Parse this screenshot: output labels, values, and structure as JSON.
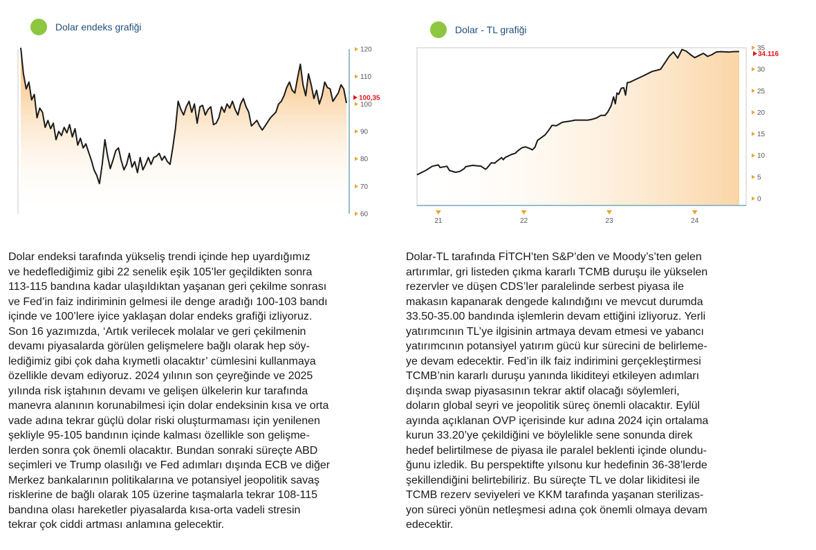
{
  "charts": [
    {
      "title": "Dolar endeks grafiği"
    },
    {
      "title": "Dolar - TL grafiği"
    }
  ],
  "chart_data": [
    {
      "type": "area",
      "title": "Dolar endeks grafiği",
      "ylim": [
        60,
        120
      ],
      "yticks": [
        120,
        110,
        100,
        90,
        80,
        70,
        60
      ],
      "current_value_label": "100,35",
      "current_value": 100.35,
      "x": [
        0,
        1,
        2,
        3,
        4,
        5,
        6,
        7,
        8,
        9,
        10,
        11,
        12,
        13,
        14,
        15,
        16,
        17,
        18,
        19,
        20,
        21,
        22,
        23,
        24,
        25,
        26,
        27,
        28,
        29,
        30,
        31,
        32,
        33,
        34,
        35,
        36,
        37,
        38,
        39,
        40,
        41,
        42,
        43,
        44,
        45,
        46,
        47,
        48,
        49,
        50,
        51,
        52,
        53,
        54,
        55,
        56,
        57,
        58,
        59,
        60,
        61,
        62,
        63,
        64,
        65,
        66,
        67,
        68,
        69,
        70,
        71,
        72,
        73,
        74,
        75,
        76,
        77,
        78,
        79,
        80,
        81,
        82,
        83,
        84,
        85,
        86,
        87,
        88,
        89,
        90,
        91,
        92,
        93,
        94,
        95,
        96,
        97,
        98,
        99,
        100,
        101,
        102,
        103,
        104,
        105,
        106,
        107,
        108,
        109,
        110,
        111,
        112,
        113,
        114,
        115,
        116,
        117,
        118,
        119,
        120
      ],
      "values": [
        120.5,
        111,
        105.5,
        108,
        101.5,
        103.5,
        95,
        98.5,
        97,
        91.5,
        94,
        91,
        93,
        87,
        90,
        88.5,
        91.5,
        89.5,
        92.5,
        88,
        91,
        85,
        87.5,
        84,
        85.5,
        82.5,
        79.5,
        76,
        74,
        71,
        78,
        87,
        81,
        76.5,
        79.5,
        83,
        84,
        79.5,
        76,
        78,
        82,
        77,
        79,
        75,
        80.5,
        76,
        78,
        80.5,
        78,
        80.5,
        81,
        82,
        79.5,
        81,
        79,
        78,
        84,
        91,
        101,
        98,
        96,
        99,
        101,
        97,
        100,
        93,
        99,
        99.5,
        96,
        98,
        99,
        92.5,
        93,
        95,
        99,
        97,
        100,
        98.5,
        101,
        98,
        96,
        100,
        102,
        99,
        97,
        92,
        93,
        94,
        92,
        90.5,
        92,
        93.5,
        95,
        96,
        97,
        100,
        101,
        103,
        106,
        108,
        105,
        104,
        109.5,
        114.5,
        107,
        103,
        111,
        107,
        102,
        105,
        100,
        103,
        108,
        106,
        105.5,
        101,
        102.5,
        104,
        107,
        105.5,
        100.35
      ]
    },
    {
      "type": "line",
      "title": "Dolar - TL grafiği",
      "ylim": [
        0,
        35
      ],
      "yticks": [
        35,
        30,
        25,
        20,
        15,
        10,
        5,
        0
      ],
      "xticks": [
        "21",
        "22",
        "23",
        "24"
      ],
      "current_value_label": "34.116",
      "current_value": 34.116,
      "x": [
        20.75,
        20.85,
        20.93,
        21.0,
        21.02,
        21.1,
        21.13,
        21.2,
        21.25,
        21.3,
        21.32,
        21.4,
        21.5,
        21.55,
        21.57,
        21.62,
        21.66,
        21.68,
        21.74,
        21.76,
        21.78,
        21.85,
        21.9,
        21.93,
        21.98,
        22.02,
        22.07,
        22.1,
        22.13,
        22.16,
        22.25,
        22.3,
        22.33,
        22.38,
        22.45,
        22.55,
        22.6,
        22.75,
        22.8,
        22.85,
        22.9,
        22.95,
        22.98,
        23.02,
        23.05,
        23.07,
        23.09,
        23.11,
        23.14,
        23.17,
        23.19,
        23.21,
        23.24,
        23.27,
        23.4,
        23.5,
        23.6,
        23.65,
        23.7,
        23.75,
        23.8,
        23.85,
        23.9,
        23.95,
        24.0,
        24.05,
        24.1,
        24.15,
        24.2,
        24.25,
        24.3,
        24.4,
        24.45,
        24.52
      ],
      "values": [
        5.5,
        6.5,
        7.5,
        7.8,
        7.2,
        7.5,
        6.5,
        6.1,
        6.3,
        6.9,
        7.4,
        7.7,
        7.5,
        6.8,
        7.1,
        8.3,
        8.2,
        8.6,
        9.5,
        9.0,
        9.5,
        10.2,
        10.5,
        11.1,
        11.8,
        12.0,
        11.6,
        11.3,
        11.9,
        13.5,
        14.8,
        16.1,
        17.0,
        16.9,
        17.7,
        18.0,
        18.2,
        18.2,
        18.4,
        18.7,
        19.3,
        19.3,
        20.0,
        21.5,
        23.6,
        22.0,
        24.5,
        24.2,
        25.6,
        25.7,
        24.0,
        26.9,
        27.0,
        27.3,
        28.5,
        29.5,
        30.0,
        31.5,
        33.0,
        34.0,
        32.6,
        34.6,
        34.2,
        33.4,
        32.7,
        33.2,
        33.7,
        33.0,
        33.4,
        34.0,
        34.1,
        34.0,
        34.1,
        34.116
      ]
    }
  ],
  "text_left": [
    "Dolar endeksi tarafında yükseliş trendi içinde hep uyardığımız",
    "ve hedeflediğimiz gibi 22 senelik eşik 105’ler geçildikten sonra",
    "113-115 bandına kadar ulaşıldıktan yaşanan geri çekilme sonrası",
    "ve Fed’in faiz indiriminin gelmesi ile denge aradığı 100-103 bandı",
    "içinde ve 100’lere iyice yaklaşan dolar endeks grafiği izliyoruz.",
    "Son 16 yazımızda, ‘Artık verilecek molalar ve geri çekilmenin",
    "devamı piyasalarda görülen gelişmelere bağlı olarak hep söy-",
    "lediğimiz gibi çok daha kıymetli olacaktır’ cümlesini kullanmaya",
    "özellikle devam ediyoruz. 2024 yılının son çeyreğinde ve 2025",
    "yılında risk iştahının devamı ve gelişen ülkelerin kur tarafında",
    "manevra alanının korunabilmesi için dolar endeksinin kısa ve orta",
    "vade adına tekrar güçlü dolar riski oluşturmaması için yenilenen",
    "şekliyle 95-105 bandının içinde kalması özellikle son gelişme-",
    "lerden sonra çok önemli olacaktır. Bundan sonraki süreçte ABD",
    "seçimleri ve Trump olasılığı ve Fed adımları dışında ECB ve diğer",
    "Merkez bankalarının politikalarına ve potansiyel jeopolitik savaş",
    "risklerine de bağlı olarak 105 üzerine taşmalarla tekrar 108-115",
    "bandına olası hareketler piyasalarda kısa-orta vadeli stresin",
    "tekrar çok ciddi artması anlamına gelecektir."
  ],
  "text_right": [
    "Dolar-TL tarafında FİTCH’ten S&P’den ve Moody’s’ten gelen",
    "artırımlar, gri listeden çıkma kararlı TCMB duruşu ile yükselen",
    "rezervler ve düşen CDS’ler paralelinde serbest piyasa ile",
    "makasın kapanarak dengede kalındığını ve mevcut durumda",
    "33.50-35.00 bandında işlemlerin devam ettiğini izliyoruz. Yerli",
    "yatırımcının TL’ye ilgisinin artmaya devam etmesi ve yabancı",
    "yatırımcının potansiyel yatırım gücü kur sürecini de belirleme-",
    "ye devam edecektir. Fed’in ilk faiz indirimini gerçekleştirmesi",
    "TCMB’nin kararlı duruşu yanında likiditeyi etkileyen adımları",
    "dışında swap piyasasının tekrar aktif olacağı söylemleri,",
    "doların global seyri ve jeopolitik süreç önemli olacaktır. Eylül",
    "ayında açıklanan OVP içerisinde kur adına 2024 için ortalama",
    "kurun 33.20’ye çekildiğini ve böylelikle sene sonunda direk",
    "hedef belirtilmese de piyasa ile paralel beklenti içinde olundu-",
    "ğunu izledik. Bu perspektifte yılsonu kur hedefinin 36-38’lerde",
    "şekillendiğini belirtebiliriz. Bu süreçte TL ve dolar likiditesi ile",
    "TCMB rezerv seviyeleri ve KKM tarafında yaşanan sterilizas-",
    "yon süreci yönün netleşmesi adına çok önemli olmaya devam",
    "edecektir."
  ]
}
